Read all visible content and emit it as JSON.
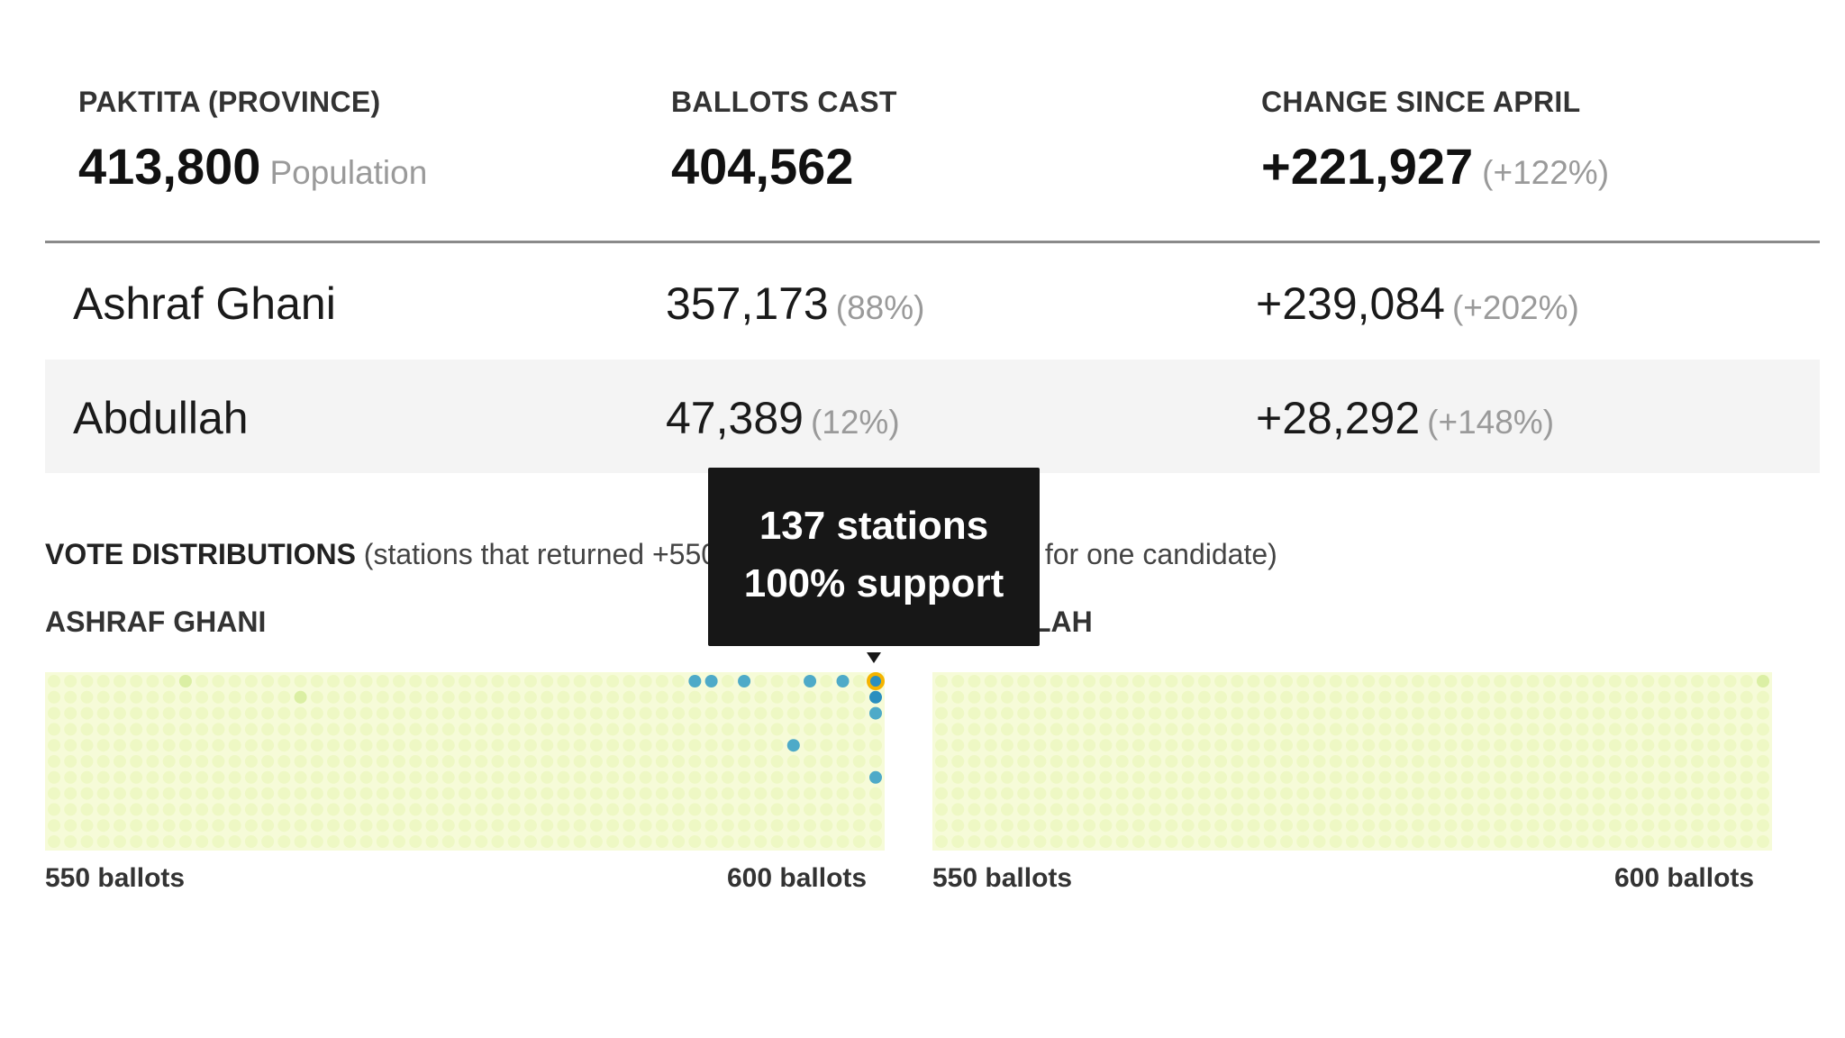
{
  "header": {
    "province_label": "PAKTITA (PROVINCE)",
    "population_value": "413,800",
    "population_label": "Population",
    "ballots_label": "BALLOTS CAST",
    "ballots_value": "404,562",
    "change_label": "CHANGE SINCE APRIL",
    "change_value": "+221,927",
    "change_pct": "(+122%)"
  },
  "candidates": [
    {
      "name": "Ashraf Ghani",
      "votes": "357,173",
      "votes_pct": "(88%)",
      "change": "+239,084",
      "change_pct": "(+202%)"
    },
    {
      "name": "Abdullah",
      "votes": "47,389",
      "votes_pct": "(12%)",
      "change": "+28,292",
      "change_pct": "(+148%)"
    }
  ],
  "distributions": {
    "title": "VOTE DISTRIBUTIONS",
    "description": "(stations that returned +550 votes and +90% support for one candidate)",
    "ghani_label": "ASHRAF GHANI",
    "abdullah_label": "ABDULLAH",
    "axis_min": "550 ballots",
    "axis_max": "600 ballots"
  },
  "tooltip": {
    "line1": "137 stations",
    "line2": "100% support"
  },
  "colors": {
    "dot_empty": "#eef8c4",
    "dot_low": "#dbefa4",
    "dot_mid": "#b9e0a6",
    "dot_high": "#4eaac8",
    "dot_max": "#2a8fbf",
    "highlight_ring": "#f5b400"
  },
  "chart_data": [
    {
      "type": "scatter",
      "title": "ASHRAF GHANI",
      "xlabel": "",
      "ylabel": "",
      "x_range": [
        "550 ballots",
        "600 ballots"
      ],
      "y_range": [
        "100% support",
        "90% support"
      ],
      "highlighted_cell": {
        "ballots": 600,
        "support_pct": 100,
        "stations": 137
      },
      "notable_cells": [
        {
          "ballots": 558,
          "support_pct": 100,
          "level": "low"
        },
        {
          "ballots": 565,
          "support_pct": 99,
          "level": "low"
        },
        {
          "ballots": 589,
          "support_pct": 100,
          "level": "high"
        },
        {
          "ballots": 590,
          "support_pct": 100,
          "level": "high"
        },
        {
          "ballots": 592,
          "support_pct": 100,
          "level": "high"
        },
        {
          "ballots": 596,
          "support_pct": 100,
          "level": "high"
        },
        {
          "ballots": 598,
          "support_pct": 100,
          "level": "high"
        },
        {
          "ballots": 600,
          "support_pct": 99,
          "level": "max"
        },
        {
          "ballots": 600,
          "support_pct": 98,
          "level": "high"
        },
        {
          "ballots": 600,
          "support_pct": 94,
          "level": "high"
        },
        {
          "ballots": 595,
          "support_pct": 96,
          "level": "high"
        }
      ]
    },
    {
      "type": "scatter",
      "title": "ABDULLAH",
      "xlabel": "",
      "ylabel": "",
      "x_range": [
        "550 ballots",
        "600 ballots"
      ],
      "y_range": [
        "100% support",
        "90% support"
      ],
      "notable_cells": [
        {
          "ballots": 600,
          "support_pct": 100,
          "level": "low"
        }
      ]
    }
  ]
}
